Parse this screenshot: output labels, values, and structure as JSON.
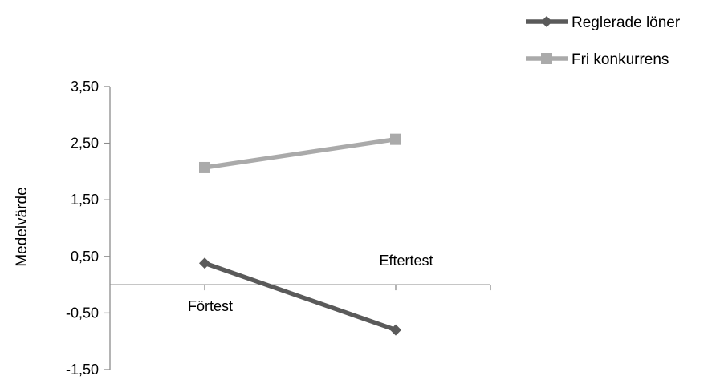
{
  "chart_data": {
    "type": "line",
    "title": "",
    "xlabel": "",
    "ylabel": "Medelvärde",
    "ylim": [
      -1.5,
      3.5
    ],
    "yticks": [
      "3,50",
      "2,50",
      "1,50",
      "0,50",
      "-0,50",
      "-1,50"
    ],
    "ytick_values": [
      3.5,
      2.5,
      1.5,
      0.5,
      -0.5,
      -1.5
    ],
    "categories": [
      "Förtest",
      "Eftertest"
    ],
    "series": [
      {
        "name": "Reglerade löner",
        "values": [
          0.38,
          -0.8
        ],
        "color": "#5a5a5a",
        "marker": "diamond"
      },
      {
        "name": "Fri konkurrens",
        "values": [
          2.07,
          2.57
        ],
        "color": "#aaaaaa",
        "marker": "square"
      }
    ],
    "grid": false,
    "legend_position": "top-right"
  }
}
